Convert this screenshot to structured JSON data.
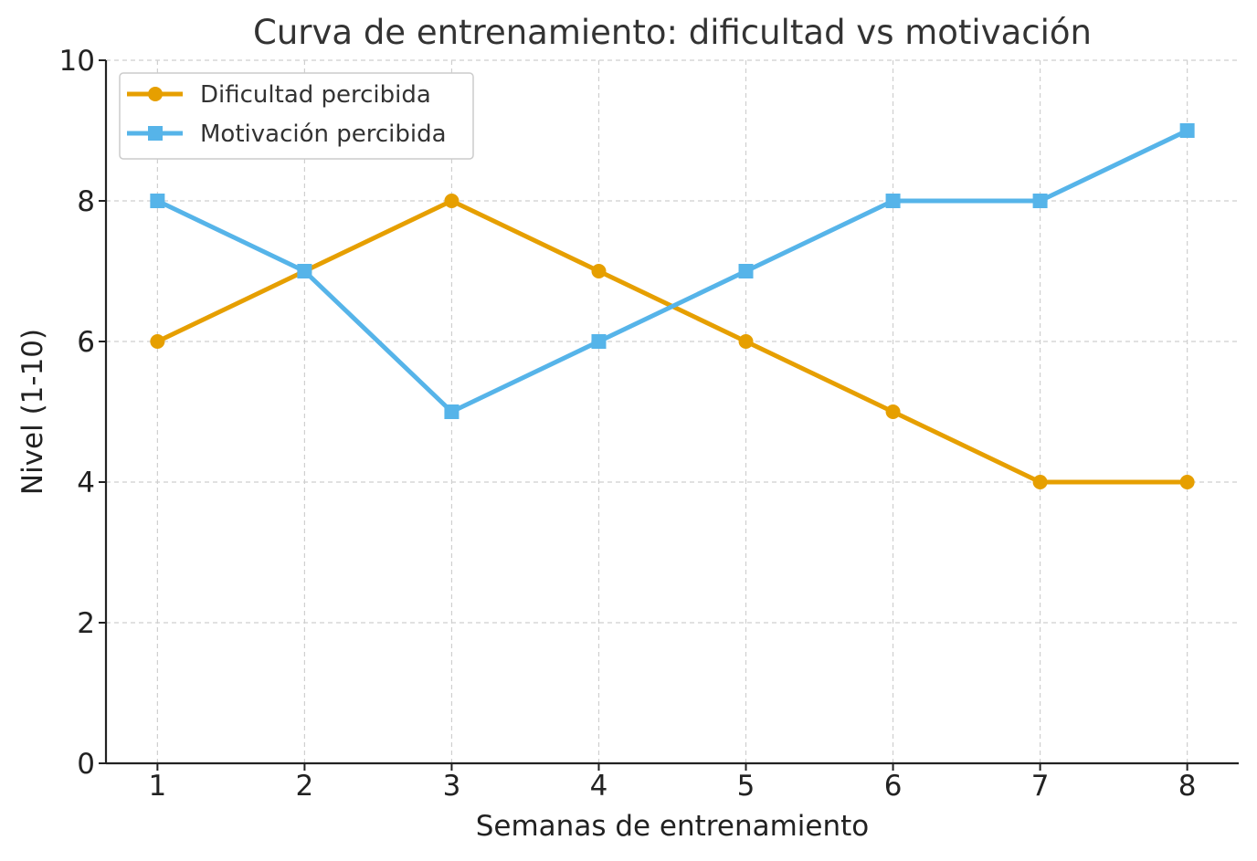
{
  "chart_data": {
    "type": "line",
    "title": "Curva de entrenamiento: dificultad vs motivación",
    "xlabel": "Semanas de entrenamiento",
    "ylabel": "Nivel (1-10)",
    "x": [
      1,
      2,
      3,
      4,
      5,
      6,
      7,
      8
    ],
    "ylim": [
      0,
      10
    ],
    "xticks": [
      "1",
      "2",
      "3",
      "4",
      "5",
      "6",
      "7",
      "8"
    ],
    "yticks": [
      "0",
      "2",
      "4",
      "6",
      "8",
      "10"
    ],
    "grid": true,
    "legend_position": "top-left",
    "series": [
      {
        "name": "Dificultad percibida",
        "values": [
          6,
          7,
          8,
          7,
          6,
          5,
          4,
          4
        ],
        "color": "#E69F00",
        "marker": "circle"
      },
      {
        "name": "Motivación percibida",
        "values": [
          8,
          7,
          5,
          6,
          7,
          8,
          8,
          9
        ],
        "color": "#56B4E9",
        "marker": "square"
      }
    ]
  }
}
